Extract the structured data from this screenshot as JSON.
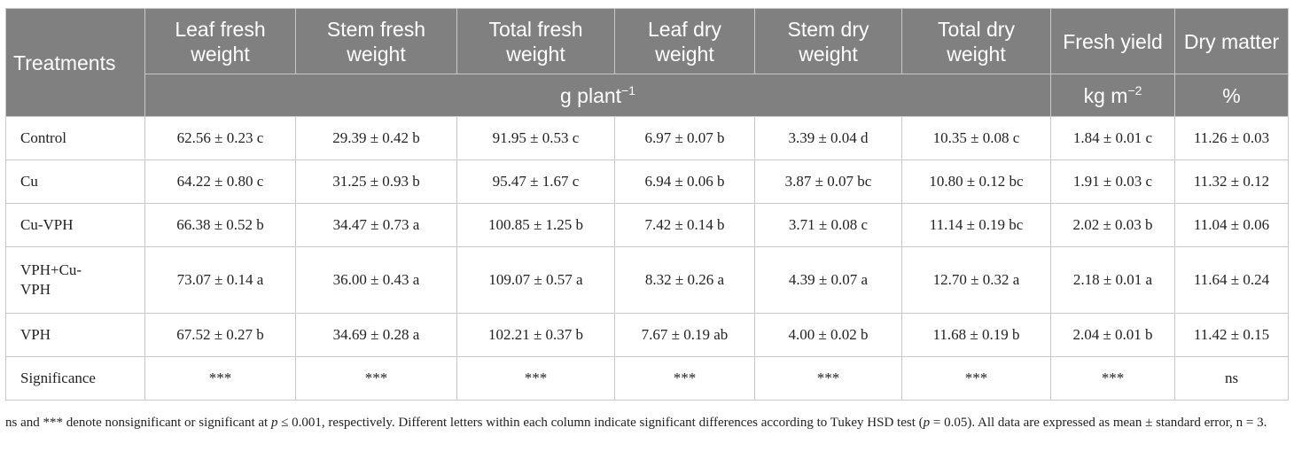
{
  "table": {
    "columns": [
      "Treatments",
      "Leaf fresh weight",
      "Stem fresh weight",
      "Total fresh weight",
      "Leaf dry weight",
      "Stem dry weight",
      "Total dry weight",
      "Fresh yield",
      "Dry matter"
    ],
    "units": {
      "g": "g plant",
      "g_sup": "−1",
      "kg": "kg m",
      "kg_sup": "−2",
      "pct": "%"
    },
    "rows": [
      {
        "name": "Control",
        "vals": [
          "62.56 ± 0.23 c",
          "29.39 ± 0.42 b",
          "91.95 ± 0.53 c",
          "6.97 ± 0.07 b",
          "3.39 ± 0.04 d",
          "10.35 ± 0.08 c",
          "1.84 ± 0.01 c",
          "11.26 ± 0.03"
        ]
      },
      {
        "name": "Cu",
        "vals": [
          "64.22 ± 0.80 c",
          "31.25 ± 0.93 b",
          "95.47 ± 1.67 c",
          "6.94 ± 0.06 b",
          "3.87 ± 0.07 bc",
          "10.80 ± 0.12 bc",
          "1.91 ± 0.03 c",
          "11.32 ± 0.12"
        ]
      },
      {
        "name": "Cu-VPH",
        "vals": [
          "66.38 ± 0.52 b",
          "34.47 ± 0.73 a",
          "100.85 ± 1.25 b",
          "7.42 ± 0.14 b",
          "3.71 ± 0.08 c",
          "11.14 ± 0.19 bc",
          "2.02 ± 0.03 b",
          "11.04 ± 0.06"
        ]
      },
      {
        "name": "VPH+Cu-VPH",
        "vals": [
          "73.07 ± 0.14 a",
          "36.00 ± 0.43 a",
          "109.07 ± 0.57 a",
          "8.32 ± 0.26 a",
          "4.39 ± 0.07 a",
          "12.70 ± 0.32 a",
          "2.18 ± 0.01 a",
          "11.64 ± 0.24"
        ]
      },
      {
        "name": "VPH",
        "vals": [
          "67.52 ± 0.27 b",
          "34.69 ± 0.28 a",
          "102.21 ± 0.37 b",
          "7.67 ± 0.19 ab",
          "4.00 ± 0.02 b",
          "11.68 ± 0.19 b",
          "2.04 ± 0.01 b",
          "11.42 ± 0.15"
        ]
      },
      {
        "name": "Significance",
        "vals": [
          "***",
          "***",
          "***",
          "***",
          "***",
          "***",
          "***",
          "ns"
        ]
      }
    ]
  },
  "footnote": {
    "a": "ns and *** denote nonsignificant or significant at ",
    "p1": "p",
    "b": " ≤ 0.001, respectively. Different letters within each column indicate significant differences according to Tukey HSD test (",
    "p2": "p",
    "c": " = 0.05). All data are expressed as mean ± standard error, n = 3."
  }
}
